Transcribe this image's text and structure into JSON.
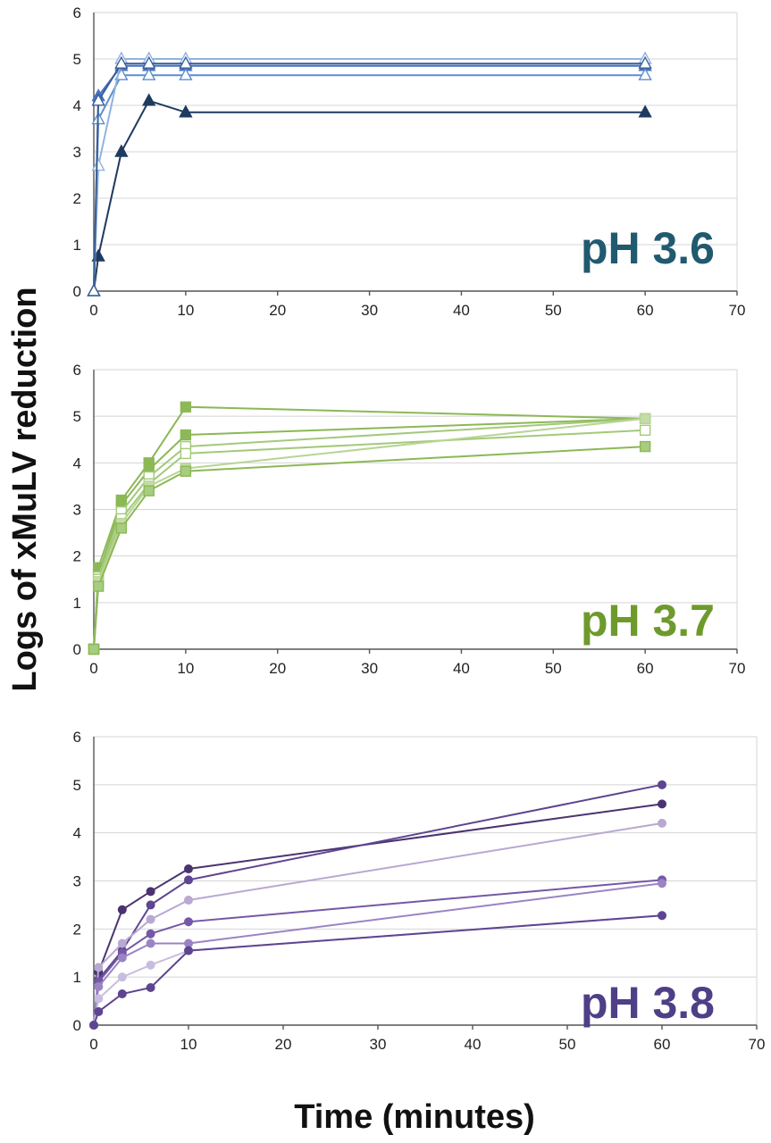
{
  "figure": {
    "ylabel": "Logs of xMuLV reduction",
    "xlabel": "Time (minutes)"
  },
  "chart_data": [
    {
      "type": "line",
      "annotation": "pH 3.6",
      "annotation_color": "#215a6e",
      "marker": "triangle",
      "xlim": [
        0,
        70
      ],
      "ylim": [
        0,
        6
      ],
      "xticks": [
        "0",
        "10",
        "20",
        "30",
        "40",
        "50",
        "60",
        "70"
      ],
      "yticks": [
        "0",
        "1",
        "2",
        "3",
        "4",
        "5",
        "6"
      ],
      "grid": true,
      "series": [
        {
          "color": "#1f3a60",
          "fill": "#1f3a60",
          "x": [
            0,
            0.5,
            3,
            6,
            10,
            60
          ],
          "y": [
            0,
            0.75,
            3.0,
            4.1,
            3.85,
            3.85
          ]
        },
        {
          "color": "#4472c4",
          "fill": "#4472c4",
          "x": [
            0,
            0.5,
            3,
            6,
            10,
            60
          ],
          "y": [
            0,
            4.2,
            4.85,
            4.85,
            4.85,
            4.85
          ]
        },
        {
          "color": "#5b8fd0",
          "fill": "#ffffff",
          "x": [
            0,
            0.5,
            3,
            6,
            10,
            60
          ],
          "y": [
            0,
            3.7,
            4.65,
            4.65,
            4.65,
            4.65
          ]
        },
        {
          "color": "#8fb3e0",
          "fill": "#ffffff",
          "x": [
            0,
            0.5,
            3,
            6,
            10,
            60
          ],
          "y": [
            0,
            2.7,
            5.0,
            5.0,
            5.0,
            5.0
          ]
        },
        {
          "color": "#3a5f95",
          "fill": "#ffffff",
          "x": [
            0,
            0.5,
            3,
            6,
            10,
            60
          ],
          "y": [
            0,
            4.1,
            4.9,
            4.9,
            4.9,
            4.9
          ]
        }
      ]
    },
    {
      "type": "line",
      "annotation": "pH 3.7",
      "annotation_color": "#6e9a2c",
      "marker": "square",
      "xlim": [
        0,
        70
      ],
      "ylim": [
        0,
        6
      ],
      "xticks": [
        "0",
        "10",
        "20",
        "30",
        "40",
        "50",
        "60",
        "70"
      ],
      "yticks": [
        "0",
        "1",
        "2",
        "3",
        "4",
        "5",
        "6"
      ],
      "grid": true,
      "series": [
        {
          "color": "#8cb856",
          "fill": "#8cb856",
          "x": [
            0,
            0.5,
            3,
            6,
            10,
            60
          ],
          "y": [
            0,
            1.75,
            3.2,
            4.0,
            5.2,
            4.95
          ]
        },
        {
          "color": "#8cb856",
          "fill": "#8cb856",
          "x": [
            0,
            0.5,
            3,
            6,
            10,
            60
          ],
          "y": [
            0,
            1.6,
            3.1,
            3.85,
            4.6,
            4.95
          ]
        },
        {
          "color": "#a3c97a",
          "fill": "#ffffff",
          "x": [
            0,
            0.5,
            3,
            6,
            10,
            60
          ],
          "y": [
            0,
            1.55,
            2.95,
            3.7,
            4.35,
            4.95
          ]
        },
        {
          "color": "#a3c97a",
          "fill": "#ffffff",
          "x": [
            0,
            0.5,
            3,
            6,
            10,
            60
          ],
          "y": [
            0,
            1.5,
            2.8,
            3.55,
            4.2,
            4.7
          ]
        },
        {
          "color": "#b7d494",
          "fill": "#c4dca8",
          "x": [
            0,
            0.5,
            3,
            6,
            10,
            60
          ],
          "y": [
            0,
            1.45,
            2.7,
            3.5,
            3.88,
            4.95
          ]
        },
        {
          "color": "#8cb856",
          "fill": "#a8cc80",
          "x": [
            0,
            0.5,
            3,
            6,
            10,
            60
          ],
          "y": [
            0,
            1.35,
            2.6,
            3.4,
            3.82,
            4.35
          ]
        }
      ]
    },
    {
      "type": "line",
      "annotation": "pH 3.8",
      "annotation_color": "#4f3f86",
      "marker": "circle",
      "xlim": [
        0,
        70
      ],
      "ylim": [
        0,
        6
      ],
      "xticks": [
        "0",
        "10",
        "20",
        "30",
        "40",
        "50",
        "60",
        "70"
      ],
      "yticks": [
        "0",
        "1",
        "2",
        "3",
        "4",
        "5",
        "6"
      ],
      "grid": true,
      "series": [
        {
          "color": "#4a3370",
          "fill": "#4a3370",
          "x": [
            0,
            0.5,
            3,
            6,
            10,
            60
          ],
          "y": [
            0,
            1.1,
            2.4,
            2.78,
            3.25,
            4.6
          ]
        },
        {
          "color": "#5e4590",
          "fill": "#5e4590",
          "x": [
            0,
            0.5,
            3,
            6,
            10,
            60
          ],
          "y": [
            0,
            0.95,
            1.55,
            2.5,
            3.02,
            5.0
          ]
        },
        {
          "color": "#b8a8d2",
          "fill": "#b8a8d2",
          "x": [
            0,
            0.5,
            3,
            6,
            10,
            60
          ],
          "y": [
            0,
            1.2,
            1.7,
            2.2,
            2.6,
            4.2
          ]
        },
        {
          "color": "#7558a6",
          "fill": "#7558a6",
          "x": [
            0,
            0.5,
            3,
            6,
            10,
            60
          ],
          "y": [
            0,
            0.9,
            1.5,
            1.9,
            2.15,
            3.02
          ]
        },
        {
          "color": "#9a84c4",
          "fill": "#9a84c4",
          "x": [
            0,
            0.5,
            3,
            6,
            10,
            60
          ],
          "y": [
            0,
            0.8,
            1.4,
            1.7,
            1.7,
            2.95
          ]
        },
        {
          "color": "#c9bce0",
          "fill": "#c9bce0",
          "x": [
            0,
            0.5,
            3,
            6,
            10,
            60
          ],
          "y": [
            0,
            0.55,
            1.0,
            1.25,
            1.55,
            2.28
          ]
        },
        {
          "color": "#5e4590",
          "fill": "#5e4590",
          "x": [
            0,
            0.5,
            3,
            6,
            10,
            60
          ],
          "y": [
            0,
            0.28,
            0.65,
            0.78,
            1.55,
            2.28
          ]
        }
      ]
    }
  ]
}
